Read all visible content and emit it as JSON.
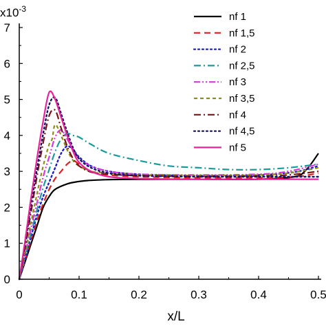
{
  "chart_data": {
    "type": "line",
    "xlabel": "x/L",
    "ylabel": "",
    "multiplier": {
      "base": "x10",
      "exp": "-3"
    },
    "xlim": [
      0,
      0.5
    ],
    "ylim": [
      0,
      7
    ],
    "xticks": [
      0,
      0.1,
      0.2,
      0.3,
      0.4,
      0.5
    ],
    "xtick_labels": [
      "0",
      "0.1",
      "0.2",
      "0.3",
      "0.4",
      "0.5"
    ],
    "yticks": [
      0,
      1,
      2,
      3,
      4,
      5,
      6,
      7
    ],
    "ytick_labels": [
      "0",
      "1",
      "2",
      "3",
      "4",
      "5",
      "6",
      "7"
    ],
    "grid": false,
    "legend_position": "top-right",
    "series": [
      {
        "name": "nf 1",
        "color": "#000000",
        "dash": "solid",
        "x": [
          0,
          0.01,
          0.02,
          0.03,
          0.04,
          0.05,
          0.06,
          0.08,
          0.1,
          0.12,
          0.15,
          0.2,
          0.3,
          0.4,
          0.46,
          0.48,
          0.5
        ],
        "y": [
          0,
          0.5,
          1.0,
          1.5,
          2.0,
          2.3,
          2.5,
          2.65,
          2.72,
          2.75,
          2.77,
          2.78,
          2.78,
          2.78,
          2.85,
          3.05,
          3.5
        ]
      },
      {
        "name": "nf 1,5",
        "color": "#e02020",
        "dash": "long-dash",
        "x": [
          0,
          0.01,
          0.02,
          0.03,
          0.04,
          0.05,
          0.06,
          0.07,
          0.08,
          0.09,
          0.1,
          0.12,
          0.15,
          0.2,
          0.3,
          0.4,
          0.46,
          0.5
        ],
        "y": [
          0,
          0.55,
          1.1,
          1.65,
          2.1,
          2.5,
          2.8,
          3.0,
          3.2,
          3.3,
          3.2,
          3.0,
          2.9,
          2.85,
          2.82,
          2.82,
          2.85,
          2.95
        ]
      },
      {
        "name": "nf 2",
        "color": "#1c1cc8",
        "dash": "dot",
        "x": [
          0,
          0.01,
          0.02,
          0.03,
          0.04,
          0.05,
          0.06,
          0.07,
          0.08,
          0.09,
          0.1,
          0.12,
          0.15,
          0.2,
          0.3,
          0.4,
          0.46,
          0.5
        ],
        "y": [
          0,
          0.6,
          1.2,
          1.8,
          2.3,
          2.7,
          3.1,
          3.5,
          3.7,
          3.6,
          3.4,
          3.15,
          3.0,
          2.92,
          2.88,
          2.9,
          2.98,
          3.15
        ]
      },
      {
        "name": "nf 2,5",
        "color": "#1a9a9a",
        "dash": "dash-dot",
        "x": [
          0,
          0.01,
          0.02,
          0.03,
          0.04,
          0.05,
          0.06,
          0.07,
          0.08,
          0.09,
          0.1,
          0.12,
          0.15,
          0.2,
          0.25,
          0.3,
          0.35,
          0.4,
          0.45,
          0.5
        ],
        "y": [
          0,
          0.65,
          1.3,
          1.95,
          2.55,
          3.05,
          3.55,
          3.9,
          4.05,
          4.0,
          3.95,
          3.75,
          3.5,
          3.3,
          3.15,
          3.1,
          3.05,
          3.05,
          3.1,
          3.2
        ]
      },
      {
        "name": "nf 3",
        "color": "#dd33dd",
        "dash": "dash-dot-dot",
        "x": [
          0,
          0.01,
          0.02,
          0.03,
          0.04,
          0.05,
          0.06,
          0.07,
          0.08,
          0.09,
          0.1,
          0.12,
          0.15,
          0.2,
          0.3,
          0.4,
          0.45,
          0.5
        ],
        "y": [
          0,
          0.72,
          1.45,
          2.15,
          2.85,
          3.4,
          3.95,
          4.15,
          3.9,
          3.6,
          3.35,
          3.15,
          3.0,
          2.92,
          2.9,
          2.92,
          3.0,
          3.2
        ]
      },
      {
        "name": "nf 3,5",
        "color": "#8c8c16",
        "dash": "short-dash",
        "x": [
          0,
          0.01,
          0.02,
          0.03,
          0.04,
          0.05,
          0.055,
          0.06,
          0.07,
          0.08,
          0.09,
          0.1,
          0.12,
          0.15,
          0.2,
          0.3,
          0.4,
          0.45,
          0.5
        ],
        "y": [
          0,
          0.78,
          1.6,
          2.4,
          3.15,
          3.75,
          3.9,
          4.3,
          4.0,
          3.6,
          3.3,
          3.15,
          3.0,
          2.95,
          2.9,
          2.88,
          2.9,
          2.95,
          3.1
        ]
      },
      {
        "name": "nf 4",
        "color": "#7a1212",
        "dash": "dash-dot",
        "x": [
          0,
          0.01,
          0.02,
          0.03,
          0.04,
          0.05,
          0.06,
          0.07,
          0.08,
          0.09,
          0.1,
          0.12,
          0.15,
          0.2,
          0.3,
          0.4,
          0.45,
          0.5
        ],
        "y": [
          0,
          0.9,
          1.9,
          2.9,
          3.8,
          4.55,
          4.7,
          4.2,
          3.7,
          3.35,
          3.15,
          2.98,
          2.92,
          2.88,
          2.86,
          2.87,
          2.9,
          3.0
        ]
      },
      {
        "name": "nf 4,5",
        "color": "#141464",
        "dash": "dot",
        "x": [
          0,
          0.01,
          0.02,
          0.03,
          0.04,
          0.05,
          0.06,
          0.07,
          0.08,
          0.09,
          0.1,
          0.12,
          0.15,
          0.2,
          0.3,
          0.4,
          0.45,
          0.5
        ],
        "y": [
          0,
          1.0,
          2.1,
          3.1,
          4.05,
          4.85,
          5.05,
          4.6,
          4.1,
          3.65,
          3.35,
          3.1,
          2.95,
          2.88,
          2.85,
          2.85,
          2.85,
          2.85
        ]
      },
      {
        "name": "nf 5",
        "color": "#e8229a",
        "dash": "solid",
        "x": [
          0,
          0.01,
          0.02,
          0.03,
          0.04,
          0.05,
          0.06,
          0.07,
          0.08,
          0.09,
          0.1,
          0.12,
          0.15,
          0.2,
          0.3,
          0.4,
          0.45,
          0.5
        ],
        "y": [
          0,
          1.1,
          2.3,
          3.4,
          4.4,
          5.2,
          5.0,
          4.5,
          4.0,
          3.55,
          3.25,
          3.0,
          2.85,
          2.8,
          2.78,
          2.78,
          2.78,
          2.78
        ]
      }
    ]
  }
}
